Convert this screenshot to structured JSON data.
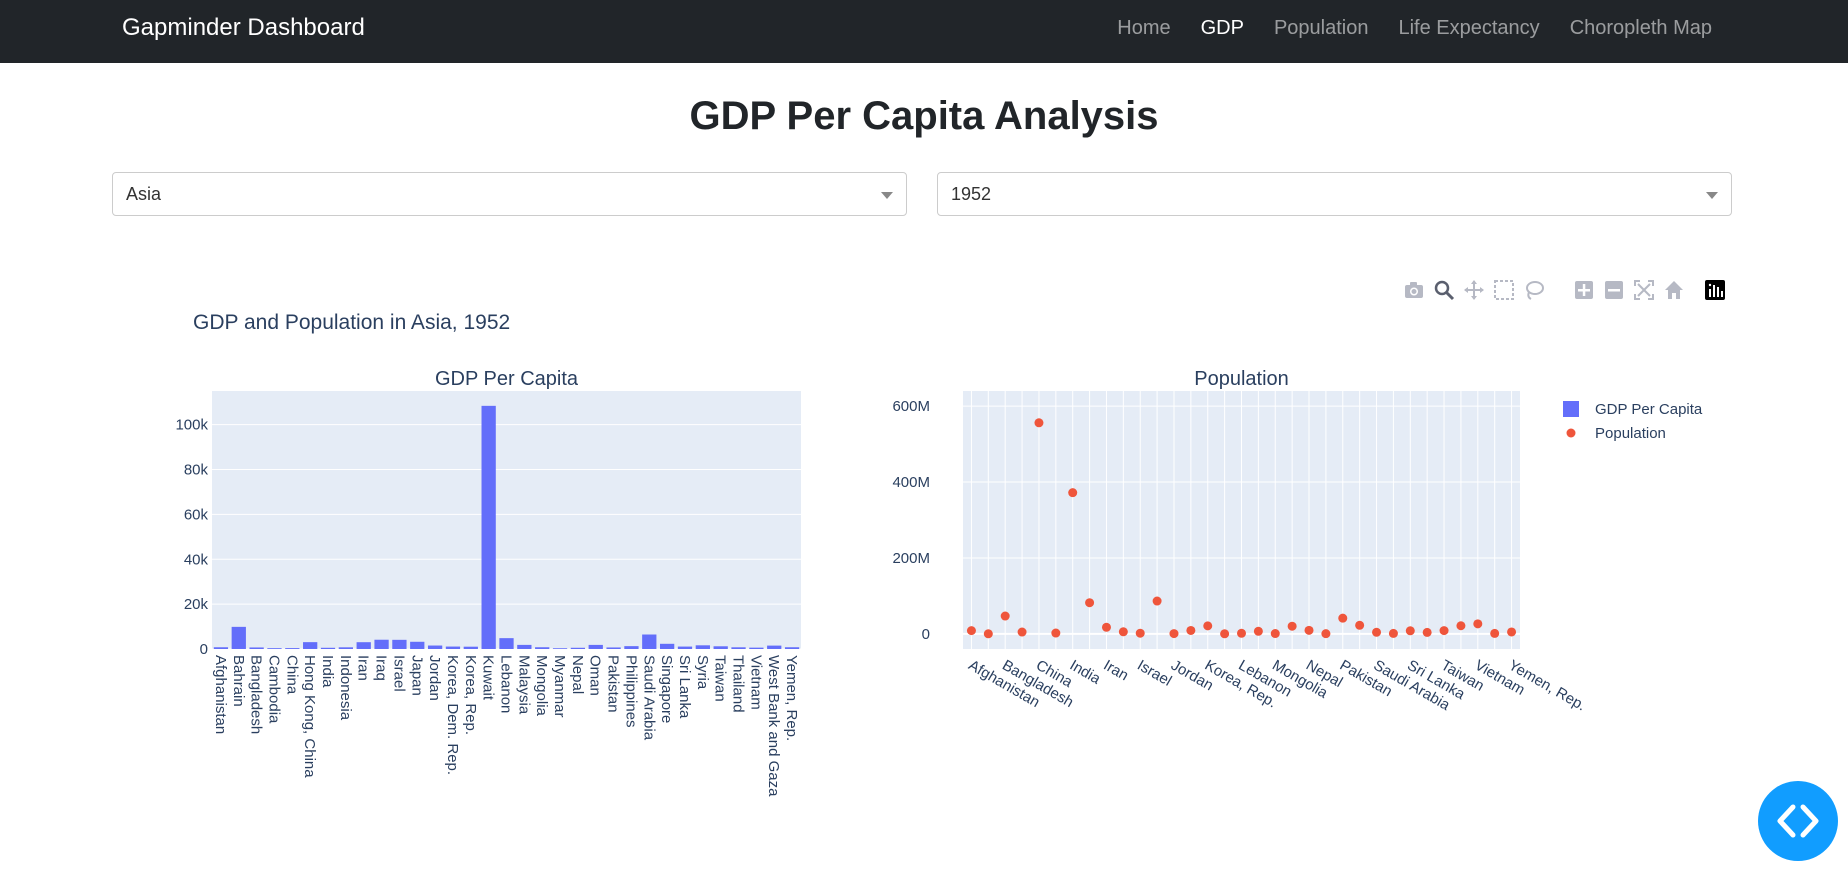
{
  "navbar": {
    "brand": "Gapminder Dashboard",
    "links": [
      {
        "label": "Home",
        "active": false
      },
      {
        "label": "GDP",
        "active": true
      },
      {
        "label": "Population",
        "active": false
      },
      {
        "label": "Life Expectancy",
        "active": false
      },
      {
        "label": "Choropleth Map",
        "active": false
      }
    ]
  },
  "page_title": "GDP Per Capita Analysis",
  "filters": {
    "continent": "Asia",
    "year": "1952"
  },
  "colors": {
    "bar": "#636efa",
    "marker": "#ef553b",
    "plot_bg": "#e5ecf6",
    "navbar": "#212529",
    "fab": "#119dff"
  },
  "chart_data": {
    "title": "GDP and Population in Asia, 1952",
    "legend": [
      "GDP Per Capita",
      "Population"
    ],
    "legend_position": "top-right",
    "grid": true,
    "subplots": [
      {
        "type": "bar",
        "title": "GDP Per Capita",
        "series_name": "GDP Per Capita",
        "ylim": [
          0,
          115000
        ],
        "yticks": [
          0,
          20000,
          40000,
          60000,
          80000,
          100000
        ],
        "ytick_labels": [
          "0",
          "20k",
          "40k",
          "60k",
          "80k",
          "100k"
        ],
        "categories": [
          "Afghanistan",
          "Bahrain",
          "Bangladesh",
          "Cambodia",
          "China",
          "Hong Kong, China",
          "India",
          "Indonesia",
          "Iran",
          "Iraq",
          "Israel",
          "Japan",
          "Jordan",
          "Korea, Dem. Rep.",
          "Korea, Rep.",
          "Kuwait",
          "Lebanon",
          "Malaysia",
          "Mongolia",
          "Myanmar",
          "Nepal",
          "Oman",
          "Pakistan",
          "Philippines",
          "Saudi Arabia",
          "Singapore",
          "Sri Lanka",
          "Syria",
          "Taiwan",
          "Thailand",
          "Vietnam",
          "West Bank and Gaza",
          "Yemen, Rep."
        ],
        "values": [
          779,
          9867,
          684,
          368,
          400,
          3054,
          547,
          750,
          3035,
          4130,
          4087,
          3217,
          1546,
          1088,
          1031,
          108382,
          4835,
          1831,
          786,
          331,
          546,
          1828,
          685,
          1273,
          6460,
          2315,
          1084,
          1644,
          1207,
          758,
          605,
          1516,
          782
        ]
      },
      {
        "type": "scatter",
        "title": "Population",
        "series_name": "Population",
        "ylim": [
          -40000000,
          640000000
        ],
        "yticks": [
          0,
          200000000,
          400000000,
          600000000
        ],
        "ytick_labels": [
          "0",
          "200M",
          "400M",
          "600M"
        ],
        "tick_labels": [
          "Afghanistan",
          "Bangladesh",
          "China",
          "India",
          "Iran",
          "Israel",
          "Jordan",
          "Korea, Rep.",
          "Lebanon",
          "Mongolia",
          "Nepal",
          "Pakistan",
          "Saudi Arabia",
          "Sri Lanka",
          "Taiwan",
          "Vietnam",
          "Yemen, Rep."
        ],
        "categories": [
          "Afghanistan",
          "Bahrain",
          "Bangladesh",
          "Cambodia",
          "China",
          "Hong Kong, China",
          "India",
          "Indonesia",
          "Iran",
          "Iraq",
          "Israel",
          "Japan",
          "Jordan",
          "Korea, Dem. Rep.",
          "Korea, Rep.",
          "Kuwait",
          "Lebanon",
          "Malaysia",
          "Mongolia",
          "Myanmar",
          "Nepal",
          "Oman",
          "Pakistan",
          "Philippines",
          "Saudi Arabia",
          "Singapore",
          "Sri Lanka",
          "Syria",
          "Taiwan",
          "Thailand",
          "Vietnam",
          "West Bank and Gaza",
          "Yemen, Rep."
        ],
        "values": [
          8425333,
          120447,
          46886859,
          4693836,
          556263527,
          2125900,
          372000000,
          82052000,
          17272000,
          5441766,
          1620914,
          86459025,
          607914,
          8865488,
          20947571,
          160000,
          1439529,
          6748378,
          800663,
          20092996,
          9182536,
          507833,
          41346560,
          22438691,
          4005677,
          1127000,
          7982342,
          3661549,
          8550362,
          21289402,
          26246839,
          1030585,
          4963829
        ]
      }
    ]
  },
  "modebar": {
    "icons": [
      "camera-icon",
      "zoom-icon",
      "pan-icon",
      "box-select-icon",
      "lasso-icon",
      "zoom-in-icon",
      "zoom-out-icon",
      "autoscale-icon",
      "reset-axes-icon",
      "plotly-logo-icon"
    ]
  },
  "fab": {
    "icon": "code-brackets-icon"
  }
}
